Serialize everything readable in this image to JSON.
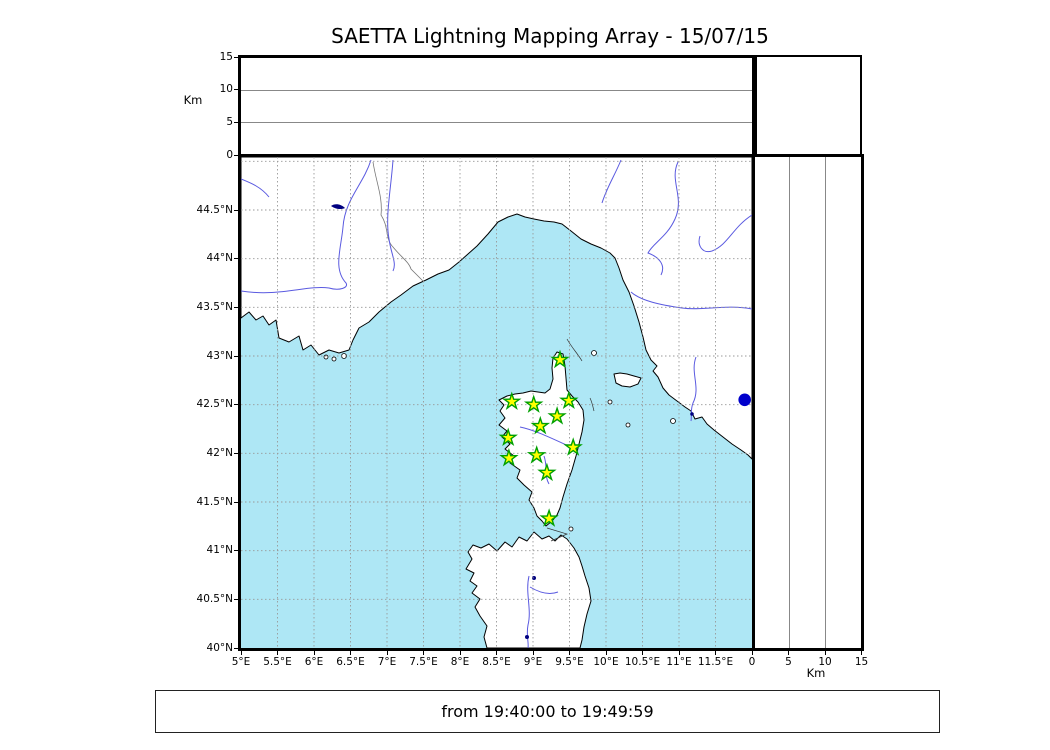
{
  "title": "SAETTA Lightning Mapping Array - 15/07/15",
  "footer": "from 19:40:00 to 19:49:59",
  "colors": {
    "sea": "#aee7f5",
    "land": "#ffffff",
    "coast": "#000000",
    "river": "#5a5ae0",
    "grid": "#999999",
    "lake": "#000080",
    "station_fill": "#ffff00",
    "station_edge": "#00a000",
    "source_dot": "#0000cc"
  },
  "map_axes": {
    "lat_ticks": [
      {
        "label": "44.5°N",
        "lat": 44.5
      },
      {
        "label": "44°N",
        "lat": 44.0
      },
      {
        "label": "43.5°N",
        "lat": 43.5
      },
      {
        "label": "43°N",
        "lat": 43.0
      },
      {
        "label": "42.5°N",
        "lat": 42.5
      },
      {
        "label": "42°N",
        "lat": 42.0
      },
      {
        "label": "41.5°N",
        "lat": 41.5
      },
      {
        "label": "41°N",
        "lat": 41.0
      },
      {
        "label": "40.5°N",
        "lat": 40.5
      },
      {
        "label": "40°N",
        "lat": 40.0
      }
    ],
    "lon_ticks": [
      {
        "label": "5°E",
        "lon": 5.0
      },
      {
        "label": "5.5°E",
        "lon": 5.5
      },
      {
        "label": "6°E",
        "lon": 6.0
      },
      {
        "label": "6.5°E",
        "lon": 6.5
      },
      {
        "label": "7°E",
        "lon": 7.0
      },
      {
        "label": "7.5°E",
        "lon": 7.5
      },
      {
        "label": "8°E",
        "lon": 8.0
      },
      {
        "label": "8.5°E",
        "lon": 8.5
      },
      {
        "label": "9°E",
        "lon": 9.0
      },
      {
        "label": "9.5°E",
        "lon": 9.5
      },
      {
        "label": "10°E",
        "lon": 10.0
      },
      {
        "label": "10.5°E",
        "lon": 10.5
      },
      {
        "label": "11°E",
        "lon": 11.0
      },
      {
        "label": "11.5°E",
        "lon": 11.5
      }
    ]
  },
  "alt_axis_top": {
    "label": "Km",
    "ticks": [
      {
        "label": "15",
        "km": 15
      },
      {
        "label": "10",
        "km": 10
      },
      {
        "label": "5",
        "km": 5
      },
      {
        "label": "0",
        "km": 0
      }
    ]
  },
  "alt_axis_right": {
    "label": "Km",
    "ticks": [
      {
        "label": "0",
        "km": 0
      },
      {
        "label": "5",
        "km": 5
      },
      {
        "label": "10",
        "km": 10
      },
      {
        "label": "15",
        "km": 15
      }
    ]
  },
  "chart_data": {
    "type": "scatter",
    "title": "SAETTA Lightning Mapping Array - 15/07/15",
    "date": "15/07/15",
    "time_range_from": "19:40:00",
    "time_range_to": "19:49:59",
    "map_extent": {
      "lon_min": 5.0,
      "lon_max": 12.0,
      "lat_min": 40.0,
      "lat_max": 45.05
    },
    "altitude_range_km": [
      0,
      15
    ],
    "altitude_gridlines_km": [
      5,
      10
    ],
    "grid_step_deg": 0.5,
    "series": [
      {
        "name": "LMA stations",
        "marker": "star",
        "fill": "#ffff00",
        "edge": "#00a000",
        "points": [
          {
            "lon": 9.37,
            "lat": 42.96
          },
          {
            "lon": 8.71,
            "lat": 42.53
          },
          {
            "lon": 9.01,
            "lat": 42.5
          },
          {
            "lon": 9.49,
            "lat": 42.54
          },
          {
            "lon": 9.33,
            "lat": 42.38
          },
          {
            "lon": 9.1,
            "lat": 42.28
          },
          {
            "lon": 8.66,
            "lat": 42.16
          },
          {
            "lon": 9.55,
            "lat": 42.06
          },
          {
            "lon": 8.67,
            "lat": 41.95
          },
          {
            "lon": 9.05,
            "lat": 41.98
          },
          {
            "lon": 9.19,
            "lat": 41.8
          },
          {
            "lon": 9.22,
            "lat": 41.33
          }
        ]
      },
      {
        "name": "lightning source",
        "marker": "circle",
        "color": "#0000cc",
        "points": [
          {
            "lon": 11.9,
            "lat": 42.55,
            "alt_km": 0
          }
        ]
      }
    ]
  }
}
